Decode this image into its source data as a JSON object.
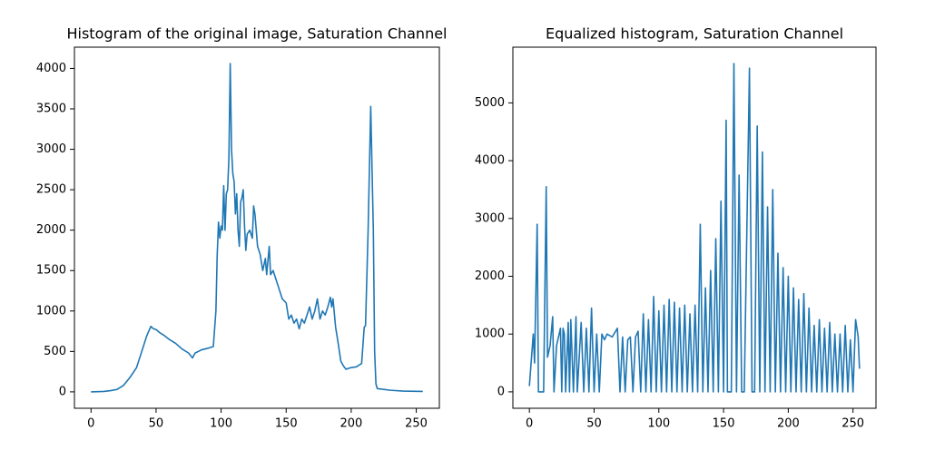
{
  "chart_data": [
    {
      "type": "line",
      "title": "Histogram of the original image, Saturation Channel",
      "color": "#1f77b4",
      "xlim": [
        -12.75,
        267.75
      ],
      "xticks": [
        0,
        50,
        100,
        150,
        200,
        250
      ],
      "ylim": [
        -203,
        4263
      ],
      "yticks": [
        0,
        500,
        1000,
        1500,
        2000,
        2500,
        3000,
        3500,
        4000
      ],
      "series": [
        {
          "name": "Saturation",
          "color": "#1f77b4",
          "x": [
            0,
            10,
            15,
            20,
            25,
            30,
            35,
            38,
            40,
            43,
            46,
            48,
            50,
            53,
            56,
            60,
            65,
            70,
            75,
            78,
            80,
            85,
            90,
            94,
            96,
            97,
            98,
            99,
            100,
            101,
            102,
            103,
            104,
            105,
            106,
            107,
            108,
            109,
            110,
            111,
            112,
            113,
            114,
            115,
            116,
            117,
            118,
            119,
            120,
            122,
            124,
            125,
            126,
            128,
            130,
            132,
            134,
            135,
            137,
            138,
            140,
            142,
            144,
            145,
            147,
            150,
            152,
            154,
            156,
            158,
            160,
            162,
            164,
            166,
            168,
            170,
            172,
            174,
            176,
            178,
            180,
            182,
            184,
            185,
            186,
            188,
            190,
            192,
            194,
            196,
            200,
            204,
            208,
            210,
            211,
            213,
            215,
            217,
            218,
            219,
            220,
            230,
            240,
            255
          ],
          "values": [
            0,
            5,
            15,
            30,
            80,
            180,
            300,
            450,
            550,
            700,
            810,
            780,
            770,
            730,
            700,
            650,
            600,
            530,
            480,
            420,
            480,
            520,
            540,
            560,
            1000,
            1700,
            2100,
            1900,
            2050,
            2000,
            2550,
            2000,
            2450,
            2500,
            2900,
            4060,
            3000,
            2700,
            2600,
            2200,
            2450,
            2000,
            1800,
            2350,
            2400,
            2500,
            2050,
            1750,
            1950,
            2000,
            1900,
            2300,
            2200,
            1800,
            1700,
            1500,
            1650,
            1450,
            1800,
            1450,
            1500,
            1400,
            1300,
            1250,
            1150,
            1100,
            900,
            950,
            850,
            900,
            780,
            900,
            850,
            950,
            1050,
            900,
            1000,
            1150,
            900,
            1000,
            950,
            1050,
            1170,
            1050,
            1150,
            800,
            600,
            380,
            320,
            280,
            300,
            310,
            350,
            800,
            820,
            2000,
            3530,
            2000,
            500,
            100,
            40,
            20,
            10,
            5
          ]
        }
      ]
    },
    {
      "type": "line",
      "title": "Equalized histogram, Saturation Channel",
      "color": "#1f77b4",
      "xlim": [
        -12.75,
        267.75
      ],
      "xticks": [
        0,
        50,
        100,
        150,
        200,
        250
      ],
      "ylim": [
        -284,
        5964
      ],
      "yticks": [
        0,
        1000,
        2000,
        3000,
        4000,
        5000
      ],
      "series": [
        {
          "name": "Equalized",
          "color": "#1f77b4",
          "x": [
            0,
            3,
            4,
            6,
            7,
            9,
            11,
            13,
            14,
            16,
            18,
            19,
            21,
            24,
            25,
            26,
            27,
            28,
            30,
            31,
            32,
            34,
            36,
            37,
            40,
            42,
            44,
            46,
            48,
            50,
            52,
            54,
            56,
            58,
            60,
            64,
            68,
            70,
            72,
            74,
            76,
            78,
            80,
            82,
            84,
            86,
            88,
            90,
            92,
            94,
            96,
            98,
            100,
            102,
            104,
            106,
            108,
            110,
            112,
            114,
            116,
            118,
            120,
            122,
            124,
            126,
            128,
            130,
            132,
            134,
            136,
            138,
            140,
            142,
            144,
            146,
            148,
            150,
            152,
            153,
            156,
            158,
            160,
            162,
            164,
            166,
            170,
            172,
            174,
            176,
            178,
            180,
            182,
            184,
            186,
            188,
            190,
            192,
            194,
            196,
            198,
            200,
            202,
            204,
            206,
            208,
            210,
            212,
            214,
            216,
            218,
            220,
            222,
            224,
            226,
            228,
            230,
            232,
            234,
            236,
            238,
            240,
            242,
            244,
            246,
            248,
            250,
            252,
            254,
            255
          ],
          "values": [
            100,
            1000,
            500,
            2900,
            0,
            0,
            0,
            3550,
            600,
            800,
            1300,
            0,
            800,
            1100,
            0,
            1100,
            1000,
            0,
            1200,
            0,
            1250,
            0,
            1300,
            0,
            1200,
            0,
            1100,
            0,
            1450,
            0,
            1000,
            0,
            1000,
            900,
            1000,
            950,
            1100,
            0,
            950,
            0,
            900,
            950,
            0,
            950,
            1050,
            0,
            1350,
            0,
            1250,
            0,
            1650,
            0,
            1400,
            0,
            1500,
            0,
            1600,
            0,
            1550,
            0,
            1450,
            0,
            1500,
            0,
            1350,
            0,
            1500,
            0,
            2900,
            0,
            1800,
            0,
            2100,
            0,
            2650,
            0,
            3300,
            0,
            4700,
            0,
            0,
            5680,
            0,
            3750,
            0,
            0,
            5600,
            0,
            0,
            4600,
            0,
            4150,
            0,
            3200,
            0,
            3500,
            0,
            2400,
            0,
            2150,
            0,
            2000,
            0,
            1800,
            0,
            1600,
            0,
            1700,
            0,
            1450,
            0,
            1150,
            0,
            1250,
            0,
            1100,
            0,
            1200,
            0,
            1000,
            0,
            1000,
            0,
            1150,
            0,
            900,
            0,
            1250,
            950,
            400
          ]
        }
      ]
    }
  ]
}
